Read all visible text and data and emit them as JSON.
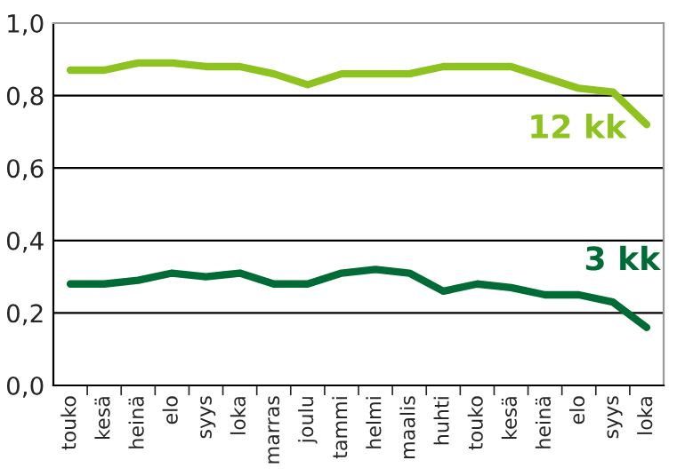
{
  "chart_data": {
    "type": "line",
    "categories": [
      "touko",
      "kesä",
      "heinä",
      "elo",
      "syys",
      "loka",
      "marras",
      "joulu",
      "tammi",
      "helmi",
      "maalis",
      "huhti",
      "touko",
      "kesä",
      "heinä",
      "elo",
      "syys",
      "loka"
    ],
    "series": [
      {
        "name": "12 kk",
        "color": "#8dc21f",
        "values": [
          0.87,
          0.87,
          0.89,
          0.89,
          0.88,
          0.88,
          0.86,
          0.83,
          0.86,
          0.86,
          0.86,
          0.88,
          0.88,
          0.88,
          0.85,
          0.82,
          0.81,
          0.72
        ]
      },
      {
        "name": "3 kk",
        "color": "#006b35",
        "values": [
          0.28,
          0.28,
          0.29,
          0.31,
          0.3,
          0.31,
          0.28,
          0.28,
          0.31,
          0.32,
          0.31,
          0.26,
          0.28,
          0.27,
          0.25,
          0.25,
          0.23,
          0.16
        ]
      }
    ],
    "ylim": [
      0,
      1
    ],
    "yticks": [
      {
        "value": 0,
        "label": "0,0"
      },
      {
        "value": 0.2,
        "label": "0,2"
      },
      {
        "value": 0.4,
        "label": "0,4"
      },
      {
        "value": 0.6,
        "label": "0,6"
      },
      {
        "value": 0.8,
        "label": "0,8"
      },
      {
        "value": 1,
        "label": "1,0"
      }
    ],
    "grid": "y",
    "legend": false,
    "marker": "none",
    "line_style": "solid"
  }
}
